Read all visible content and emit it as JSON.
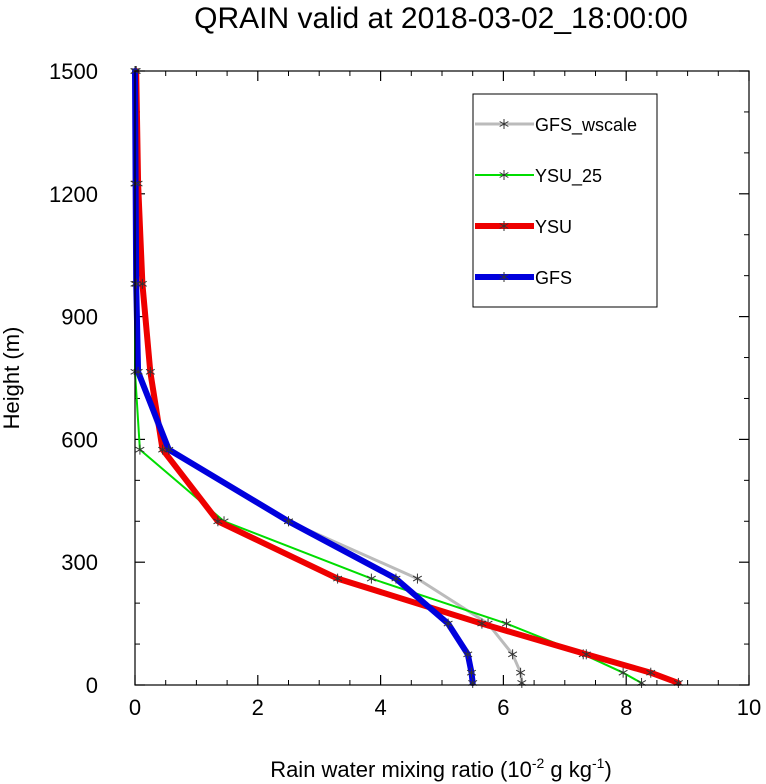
{
  "chart_data": {
    "type": "line",
    "title": "QRAIN valid at 2018-03-02_18:00:00",
    "xlabel_main": "Rain water mixing ratio (10",
    "xlabel_sup1": "-2",
    "xlabel_mid": " g kg",
    "xlabel_sup2": "-1",
    "xlabel_end": ")",
    "ylabel": "Height (m)",
    "xlim": [
      0,
      10
    ],
    "ylim": [
      0,
      1500
    ],
    "xticks": [
      "0",
      "2",
      "4",
      "6",
      "8",
      "10"
    ],
    "yticks": [
      "0",
      "300",
      "600",
      "900",
      "1200",
      "1500"
    ],
    "grid": false,
    "legend_position": "top-right",
    "series": [
      {
        "name": "GFS_wscale",
        "color": "#bbbbbb",
        "width": 3,
        "points": [
          [
            6.3,
            5
          ],
          [
            6.28,
            30
          ],
          [
            6.15,
            75
          ],
          [
            5.75,
            150
          ],
          [
            4.6,
            260
          ],
          [
            2.5,
            400
          ],
          [
            0.5,
            575
          ],
          [
            0.05,
            765
          ],
          [
            0.03,
            980
          ],
          [
            0.02,
            1225
          ],
          [
            0.01,
            1500
          ]
        ]
      },
      {
        "name": "YSU_25",
        "color": "#00dd00",
        "width": 2,
        "points": [
          [
            8.25,
            5
          ],
          [
            7.95,
            30
          ],
          [
            7.3,
            75
          ],
          [
            6.05,
            150
          ],
          [
            3.85,
            260
          ],
          [
            1.45,
            400
          ],
          [
            0.08,
            575
          ],
          [
            0.0,
            765
          ],
          [
            0.0,
            980
          ],
          [
            0.0,
            1225
          ],
          [
            0.0,
            1500
          ]
        ]
      },
      {
        "name": "YSU",
        "color": "#ee0000",
        "width": 6,
        "points": [
          [
            8.85,
            5
          ],
          [
            8.4,
            30
          ],
          [
            7.35,
            75
          ],
          [
            5.65,
            150
          ],
          [
            3.3,
            260
          ],
          [
            1.35,
            400
          ],
          [
            0.45,
            575
          ],
          [
            0.25,
            765
          ],
          [
            0.12,
            980
          ],
          [
            0.05,
            1225
          ],
          [
            0.02,
            1500
          ]
        ]
      },
      {
        "name": "GFS",
        "color": "#0000dd",
        "width": 6,
        "points": [
          [
            5.5,
            5
          ],
          [
            5.48,
            30
          ],
          [
            5.42,
            75
          ],
          [
            5.1,
            150
          ],
          [
            4.25,
            260
          ],
          [
            2.5,
            400
          ],
          [
            0.55,
            575
          ],
          [
            0.05,
            765
          ],
          [
            0.02,
            980
          ],
          [
            0.01,
            1225
          ],
          [
            0.0,
            1500
          ]
        ]
      }
    ]
  }
}
